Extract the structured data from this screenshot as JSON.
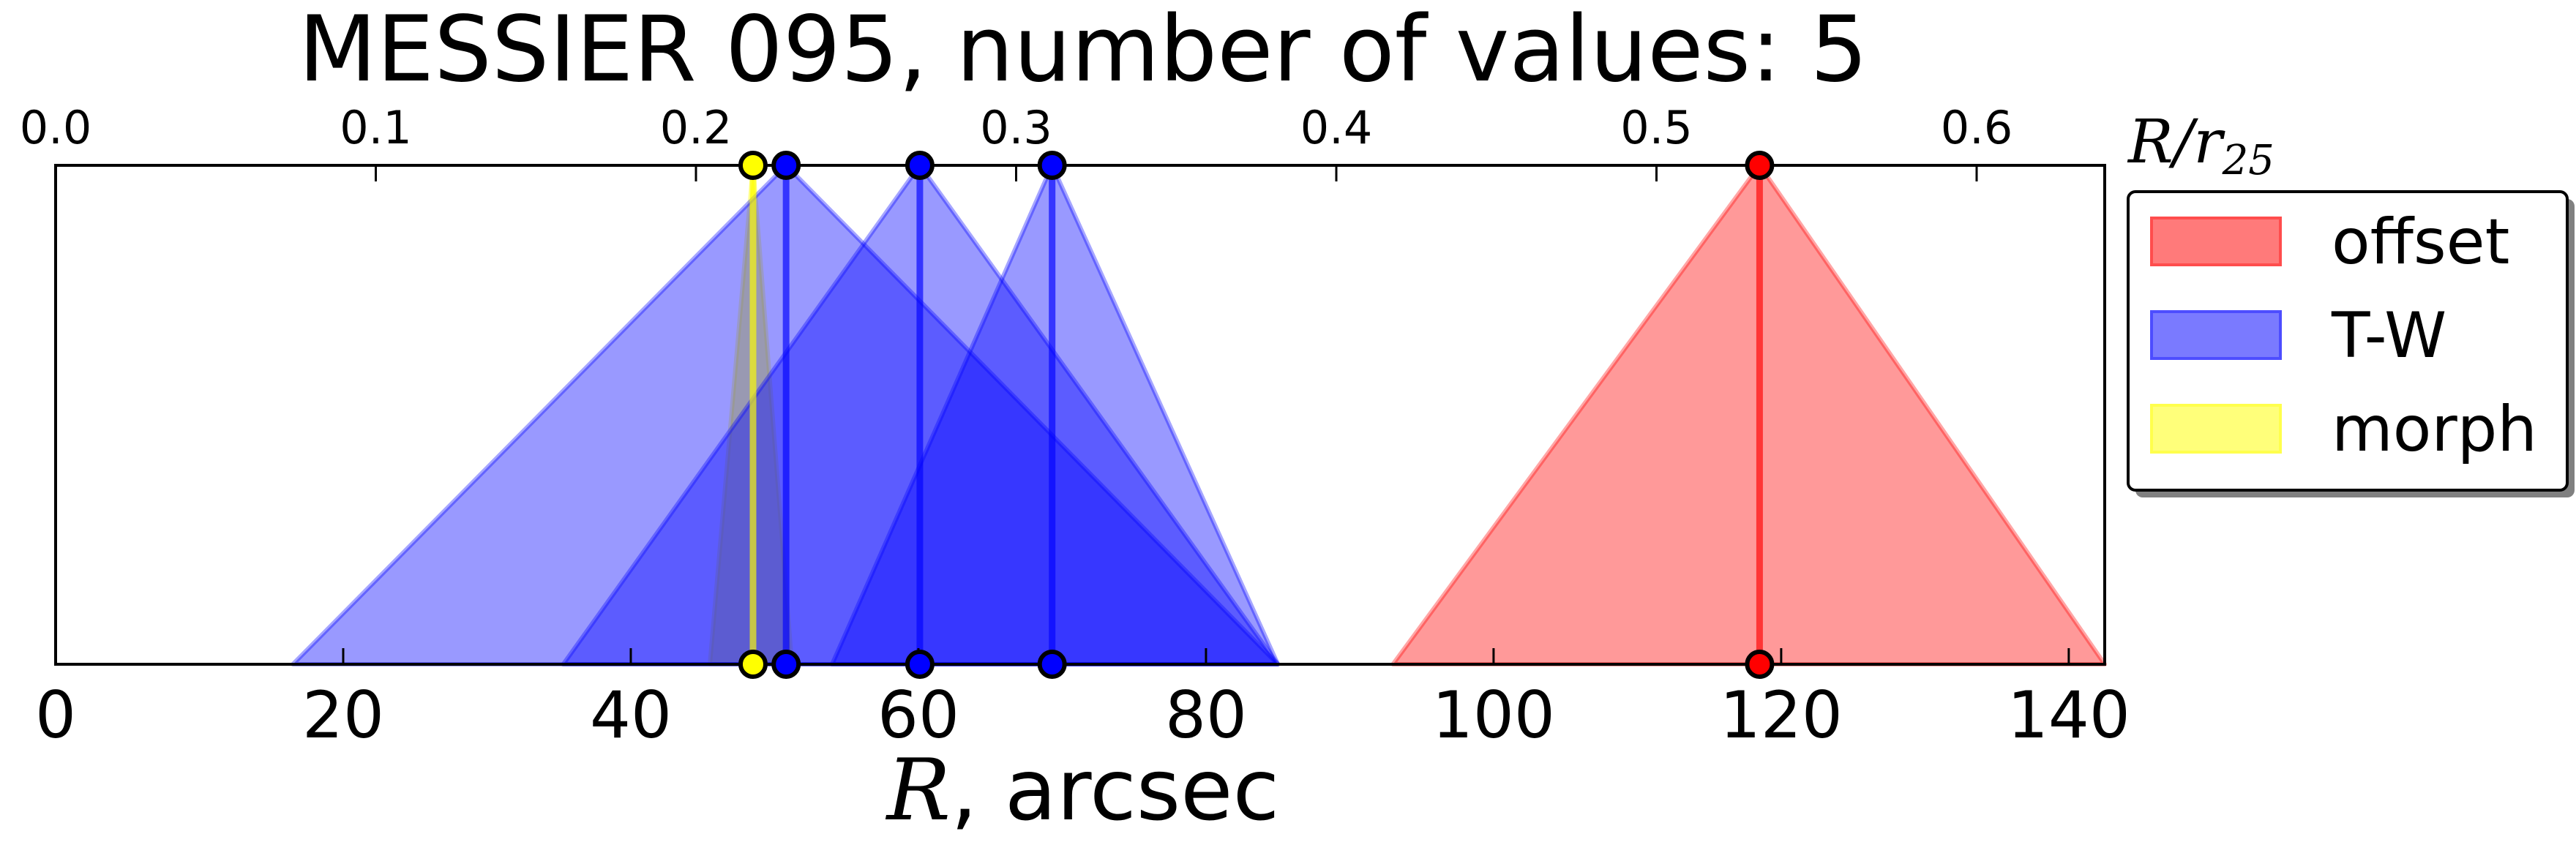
{
  "chart_data": {
    "type": "area",
    "title": "MESSIER 095, number of values: 5",
    "xlabel_symbol": "R",
    "xlabel_unit": ", arcsec",
    "x_top_label": "R/r25",
    "x_top_label_base": "R/r",
    "x_top_label_sub": "25",
    "xlim": [
      0,
      142.5
    ],
    "x_top_lim": [
      0.0,
      0.64
    ],
    "x_ticks": [
      "0",
      "20",
      "40",
      "60",
      "80",
      "100",
      "120",
      "140"
    ],
    "x_tick_values": [
      0,
      20,
      40,
      60,
      80,
      100,
      120,
      140
    ],
    "x_top_ticks": [
      "0.0",
      "0.1",
      "0.2",
      "0.3",
      "0.4",
      "0.5",
      "0.6"
    ],
    "x_top_tick_values": [
      0.0,
      0.1,
      0.2,
      0.3,
      0.4,
      0.5,
      0.6
    ],
    "legend_position": "outside-right",
    "legend": [
      {
        "label": "offset",
        "color": "#ff4d4d"
      },
      {
        "label": "T-W",
        "color": "#4d4dff"
      },
      {
        "label": "morph",
        "color": "#ffff4d"
      }
    ],
    "series": [
      {
        "name": "morph",
        "color": "#ffff00",
        "value": 48.5,
        "low": 45.5,
        "high": 51.2,
        "alpha": 0.5
      },
      {
        "name": "T-W",
        "color": "#0000ff",
        "value": 50.8,
        "low": 16.5,
        "high": 85.0,
        "alpha": 0.4
      },
      {
        "name": "T-W",
        "color": "#0000ff",
        "value": 60.1,
        "low": 35.3,
        "high": 85.0,
        "alpha": 0.4
      },
      {
        "name": "T-W",
        "color": "#0000ff",
        "value": 69.3,
        "low": 54.0,
        "high": 85.0,
        "alpha": 0.4
      },
      {
        "name": "offset",
        "color": "#ff0000",
        "value": 118.5,
        "low": 93.0,
        "high": 142.5,
        "alpha": 0.4
      }
    ]
  }
}
